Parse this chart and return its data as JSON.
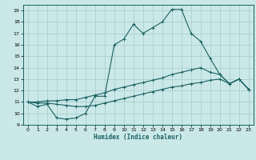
{
  "xlabel": "Humidex (Indice chaleur)",
  "background_color": "#cbe8e8",
  "grid_color": "#aacece",
  "line_color": "#1a6060",
  "xlim": [
    -0.5,
    23.5
  ],
  "ylim": [
    9,
    19.5
  ],
  "x_ticks": [
    0,
    1,
    2,
    3,
    4,
    5,
    6,
    7,
    8,
    9,
    10,
    11,
    12,
    13,
    14,
    15,
    16,
    17,
    18,
    19,
    20,
    21,
    22,
    23
  ],
  "y_ticks": [
    9,
    10,
    11,
    12,
    13,
    14,
    15,
    16,
    17,
    18,
    19
  ],
  "series1_x": [
    0,
    1,
    2,
    3,
    4,
    5,
    6,
    7,
    8,
    9,
    10,
    11,
    12,
    13,
    14,
    15,
    16,
    17,
    18,
    19,
    20,
    21,
    22,
    23
  ],
  "series1_y": [
    11.0,
    10.6,
    10.8,
    9.6,
    9.5,
    9.6,
    10.0,
    11.5,
    11.5,
    16.0,
    16.5,
    17.8,
    17.0,
    17.5,
    18.0,
    19.1,
    19.1,
    17.0,
    16.3,
    14.8,
    13.4,
    12.6,
    13.0,
    12.1
  ],
  "series2_x": [
    0,
    1,
    2,
    3,
    4,
    5,
    6,
    7,
    8,
    9,
    10,
    11,
    12,
    13,
    14,
    15,
    16,
    17,
    18,
    19,
    20,
    21,
    22,
    23
  ],
  "series2_y": [
    11.0,
    11.0,
    11.1,
    11.1,
    11.2,
    11.2,
    11.4,
    11.6,
    11.8,
    12.1,
    12.3,
    12.5,
    12.7,
    12.9,
    13.1,
    13.4,
    13.6,
    13.8,
    14.0,
    13.6,
    13.4,
    12.6,
    13.0,
    12.1
  ],
  "series3_x": [
    0,
    1,
    2,
    3,
    4,
    5,
    6,
    7,
    8,
    9,
    10,
    11,
    12,
    13,
    14,
    15,
    16,
    17,
    18,
    19,
    20,
    21,
    22,
    23
  ],
  "series3_y": [
    11.0,
    10.9,
    10.9,
    10.8,
    10.7,
    10.6,
    10.6,
    10.7,
    10.9,
    11.1,
    11.3,
    11.5,
    11.7,
    11.9,
    12.1,
    12.3,
    12.4,
    12.6,
    12.7,
    12.9,
    13.0,
    12.6,
    13.0,
    12.1
  ]
}
